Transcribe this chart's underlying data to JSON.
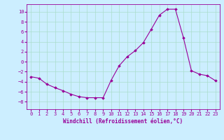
{
  "x": [
    0,
    1,
    2,
    3,
    4,
    5,
    6,
    7,
    8,
    9,
    10,
    11,
    12,
    13,
    14,
    15,
    16,
    17,
    18,
    19,
    20,
    21,
    22,
    23
  ],
  "y": [
    -3.0,
    -3.3,
    -4.5,
    -5.2,
    -5.8,
    -6.5,
    -7.0,
    -7.2,
    -7.2,
    -7.2,
    -3.7,
    -0.8,
    1.0,
    2.2,
    3.8,
    6.5,
    9.3,
    10.5,
    10.5,
    4.8,
    -1.8,
    -2.5,
    -2.8,
    -3.8
  ],
  "line_color": "#990099",
  "marker": "D",
  "markersize": 1.8,
  "linewidth": 0.8,
  "xlabel": "Windchill (Refroidissement éolien,°C)",
  "xlim": [
    -0.5,
    23.5
  ],
  "ylim": [
    -9.5,
    11.5
  ],
  "yticks": [
    -8,
    -6,
    -4,
    -2,
    0,
    2,
    4,
    6,
    8,
    10
  ],
  "xticks": [
    0,
    1,
    2,
    3,
    4,
    5,
    6,
    7,
    8,
    9,
    10,
    11,
    12,
    13,
    14,
    15,
    16,
    17,
    18,
    19,
    20,
    21,
    22,
    23
  ],
  "bg_color": "#cceeff",
  "grid_color": "#aaddcc",
  "axis_color": "#990099",
  "tick_color": "#990099",
  "label_color": "#990099",
  "font_size_label": 5.5,
  "font_size_tick": 5.0
}
